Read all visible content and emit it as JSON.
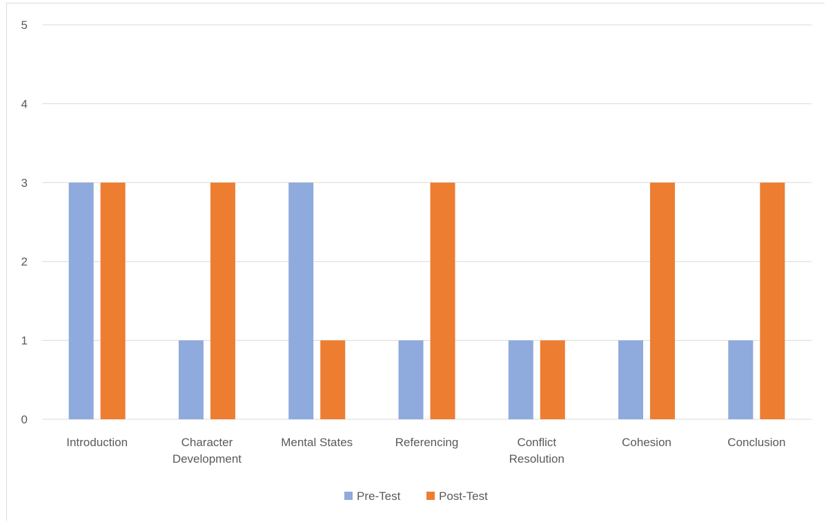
{
  "chart_data": {
    "type": "bar",
    "title": "",
    "xlabel": "",
    "ylabel": "",
    "categories": [
      [
        "Introduction"
      ],
      [
        "Character",
        "Development"
      ],
      [
        "Mental States"
      ],
      [
        "Referencing"
      ],
      [
        "Conflict",
        "Resolution"
      ],
      [
        "Cohesion"
      ],
      [
        "Conclusion"
      ]
    ],
    "series": [
      {
        "name": "Pre-Test",
        "color": "#8faadc",
        "values": [
          3,
          1,
          3,
          1,
          1,
          1,
          1
        ]
      },
      {
        "name": "Post-Test",
        "color": "#ed7d31",
        "values": [
          3,
          3,
          1,
          3,
          1,
          3,
          3
        ]
      }
    ],
    "ylim": [
      0,
      5
    ],
    "yticks": [
      0,
      1,
      2,
      3,
      4,
      5
    ],
    "grid": true,
    "legend_position": "bottom"
  }
}
